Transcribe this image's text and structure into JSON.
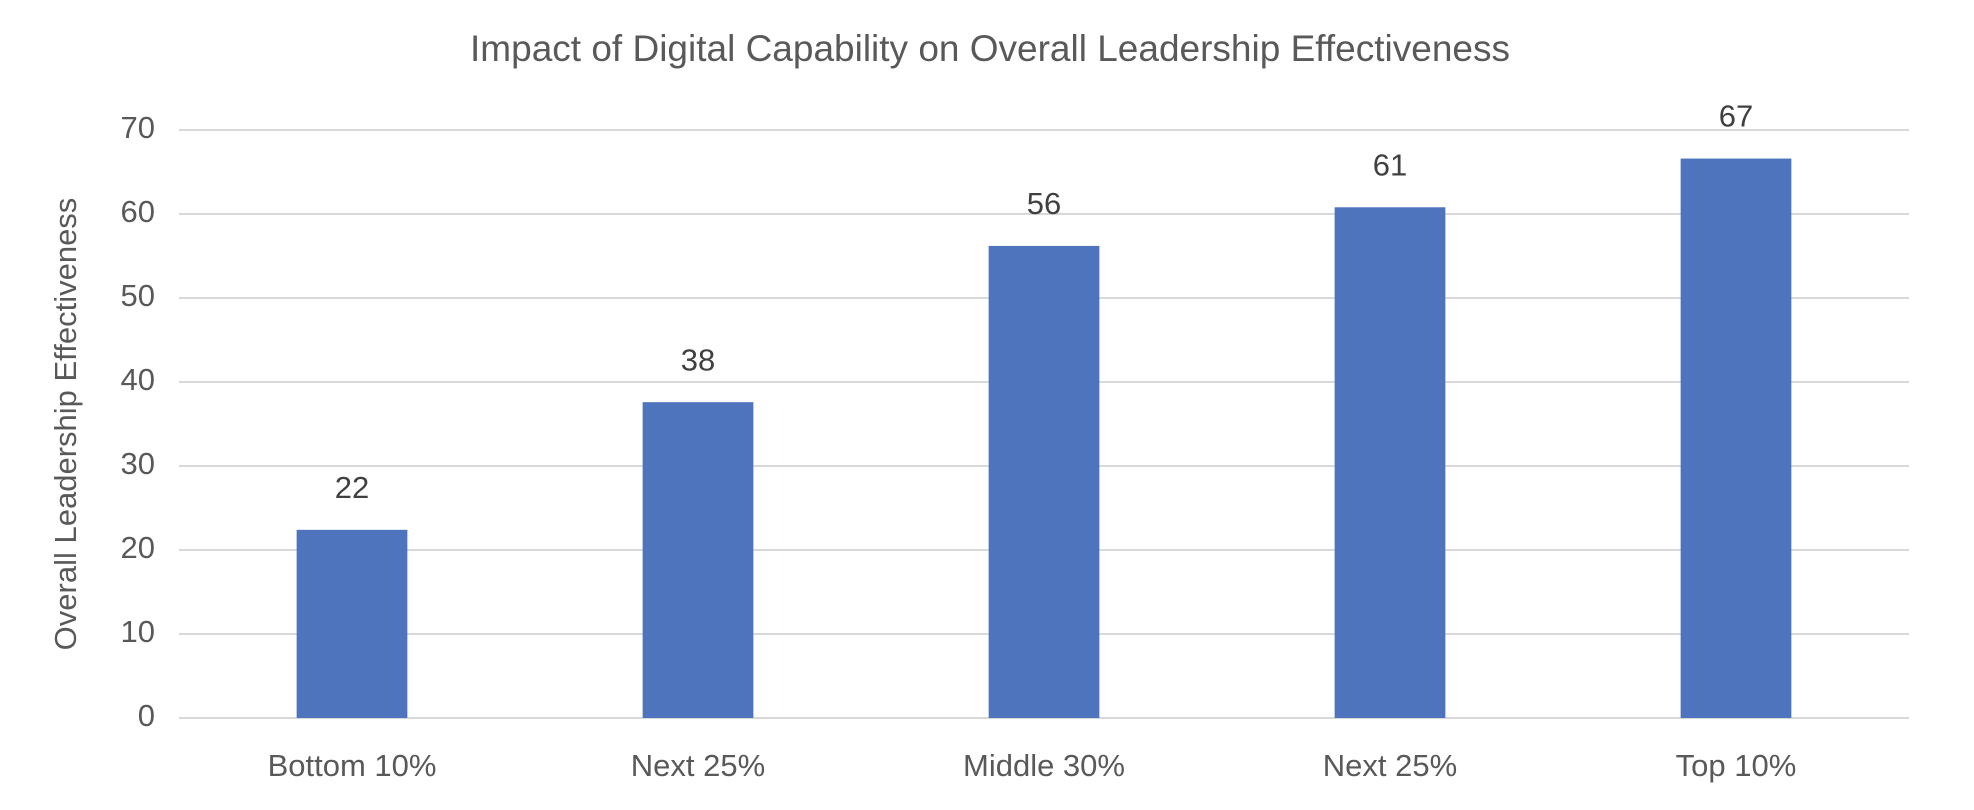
{
  "chart_data": {
    "type": "bar",
    "title": "Impact of Digital Capability on Overall Leadership Effectiveness",
    "y_label": "Overall Leadership Effectiveness",
    "categories": [
      "Bottom 10%",
      "Next 25%",
      "Middle 30%",
      "Next 25%",
      "Top 10%"
    ],
    "values": [
      22.4,
      37.6,
      56.2,
      60.8,
      66.6
    ],
    "value_labels": [
      "22",
      "38",
      "56",
      "61",
      "67"
    ],
    "color": "#4e74be",
    "ylim": [
      0,
      70
    ],
    "yticks": [
      0,
      10,
      20,
      30,
      40,
      50,
      60,
      70
    ],
    "grid": true
  }
}
